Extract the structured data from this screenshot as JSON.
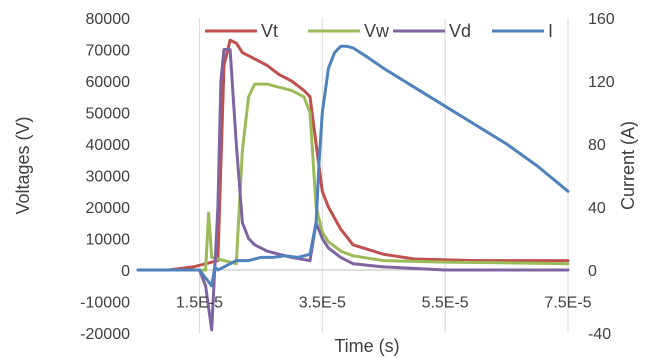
{
  "chart_data": {
    "type": "line",
    "title": "",
    "xlabel": "Time (s)",
    "ylabel": "Voltages (V)",
    "y2label": "Current (A)",
    "xlim": [
      5e-06,
      7.5e-05
    ],
    "ylim": [
      -20000,
      80000
    ],
    "y2lim": [
      -40,
      160
    ],
    "grid": "vertical",
    "legend": "top",
    "x_tick_values": [
      1.5e-05,
      3.5e-05,
      5.5e-05,
      7.5e-05
    ],
    "x_tick_labels": [
      "1.5E-5",
      "3.5E-5",
      "5.5E-5",
      "7.5E-5"
    ],
    "y_tick_values": [
      -20000,
      -10000,
      0,
      10000,
      20000,
      30000,
      40000,
      50000,
      60000,
      70000,
      80000
    ],
    "y_tick_labels": [
      "-20000",
      "-10000",
      "0",
      "10000",
      "20000",
      "30000",
      "40000",
      "50000",
      "60000",
      "70000",
      "80000"
    ],
    "y2_tick_values": [
      -40,
      0,
      40,
      80,
      120,
      160
    ],
    "y2_tick_labels": [
      "-40",
      "0",
      "40",
      "80",
      "120",
      "160"
    ],
    "series": [
      {
        "name": "Vt",
        "color": "#c0504d",
        "axis": "left",
        "x": [
          5e-06,
          1e-05,
          1.4e-05,
          1.8e-05,
          1.9e-05,
          2e-05,
          2.1e-05,
          2.2e-05,
          2.4e-05,
          2.6e-05,
          2.8e-05,
          3e-05,
          3.2e-05,
          3.3e-05,
          3.4e-05,
          3.5e-05,
          3.6e-05,
          3.8e-05,
          4e-05,
          4.5e-05,
          5e-05,
          6e-05,
          7.5e-05
        ],
        "y": [
          0,
          0,
          1000,
          3000,
          65000,
          73000,
          72000,
          69000,
          67000,
          65000,
          62000,
          60000,
          57000,
          55000,
          40000,
          25000,
          20000,
          13000,
          8000,
          5000,
          3500,
          3000,
          3000
        ]
      },
      {
        "name": "Vw",
        "color": "#9bbb59",
        "axis": "left",
        "x": [
          5e-06,
          1e-05,
          1.6e-05,
          1.65e-05,
          1.7e-05,
          1.9e-05,
          2.1e-05,
          2.2e-05,
          2.3e-05,
          2.4e-05,
          2.6e-05,
          2.8e-05,
          3e-05,
          3.2e-05,
          3.3e-05,
          3.4e-05,
          3.5e-05,
          3.6e-05,
          3.8e-05,
          4e-05,
          4.5e-05,
          5.5e-05,
          7.5e-05
        ],
        "y": [
          0,
          0,
          0,
          18000,
          4000,
          3000,
          2000,
          38000,
          55000,
          59000,
          59000,
          58000,
          57000,
          55000,
          50000,
          20000,
          12000,
          9000,
          6000,
          4500,
          3000,
          2500,
          2000
        ]
      },
      {
        "name": "Vd",
        "color": "#8064a2",
        "axis": "left",
        "x": [
          5e-06,
          1e-05,
          1.5e-05,
          1.6e-05,
          1.7e-05,
          1.8e-05,
          1.85e-05,
          1.9e-05,
          2e-05,
          2.1e-05,
          2.2e-05,
          2.3e-05,
          2.4e-05,
          2.6e-05,
          2.8e-05,
          3e-05,
          3.3e-05,
          3.4e-05,
          3.5e-05,
          3.6e-05,
          3.8e-05,
          4e-05,
          4.5e-05,
          5.5e-05,
          7.5e-05
        ],
        "y": [
          0,
          0,
          0,
          -5000,
          -19000,
          20000,
          60000,
          70000,
          70000,
          40000,
          15000,
          10000,
          8000,
          6000,
          5000,
          4000,
          3000,
          15000,
          10000,
          7000,
          4000,
          2000,
          1000,
          0,
          0
        ]
      },
      {
        "name": "I",
        "color": "#4f81bd",
        "axis": "right",
        "x": [
          5e-06,
          1e-05,
          1.5e-05,
          1.7e-05,
          1.75e-05,
          1.8e-05,
          1.9e-05,
          2.1e-05,
          2.3e-05,
          2.5e-05,
          2.7e-05,
          2.9e-05,
          3.1e-05,
          3.3e-05,
          3.4e-05,
          3.45e-05,
          3.5e-05,
          3.6e-05,
          3.7e-05,
          3.8e-05,
          3.9e-05,
          4e-05,
          4.2e-05,
          4.5e-05,
          5e-05,
          5.5e-05,
          6e-05,
          6.5e-05,
          7e-05,
          7.5e-05
        ],
        "y": [
          0,
          0,
          0,
          -10,
          2,
          0,
          2,
          6,
          6,
          8,
          8,
          9,
          8,
          10,
          30,
          70,
          100,
          128,
          138,
          142,
          142,
          141,
          136,
          128,
          116,
          104,
          92,
          80,
          66,
          50
        ]
      }
    ]
  }
}
